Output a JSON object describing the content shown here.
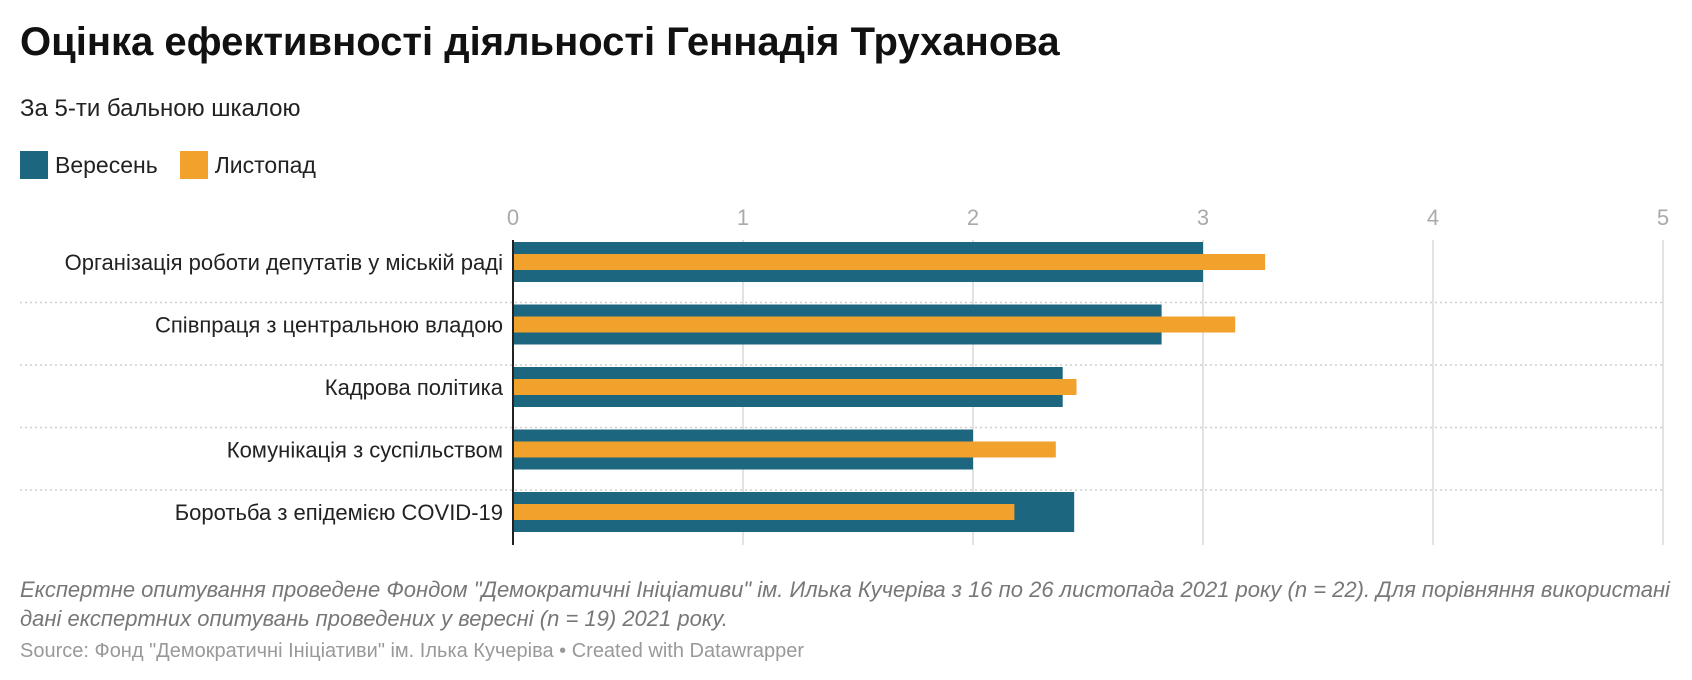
{
  "title": "Оцінка ефективності діяльності Геннадія Труханова",
  "subtitle": "За 5-ти бальною шкалою",
  "note": "Експертне опитування проведене Фондом \"Демократичні Ініціативи\" ім. Илька Кучеріва з 16 по 26 листопада 2021 року (n = 22). Для порівняння використані дані експертних опитувань проведених у вересні (n = 19) 2021 року.",
  "source": "Source: Фонд \"Демократичні Ініціативи\" ім. Ілька Кучеріва • Created with Datawrapper",
  "chart_data": {
    "type": "bar",
    "orientation": "horizontal",
    "title": "Оцінка ефективності діяльності Геннадія Труханова",
    "subtitle": "За 5-ти бальною шкалою",
    "categories": [
      "Організація роботи депутатів у міській раді",
      "Співпраця з центральною владою",
      "Кадрова політика",
      "Комунікація з суспільством",
      "Боротьба з епідемією COVID-19"
    ],
    "series": [
      {
        "name": "Вересень",
        "color": "#1d6680",
        "values": [
          3.0,
          2.82,
          2.39,
          2.0,
          2.44
        ]
      },
      {
        "name": "Листопад",
        "color": "#f0a22c",
        "values": [
          3.27,
          3.14,
          2.45,
          2.36,
          2.18
        ]
      }
    ],
    "xlim": [
      0,
      5
    ],
    "xticks": [
      "0",
      "1",
      "2",
      "3",
      "4",
      "5"
    ],
    "grid": true,
    "legend_position": "top-left"
  }
}
